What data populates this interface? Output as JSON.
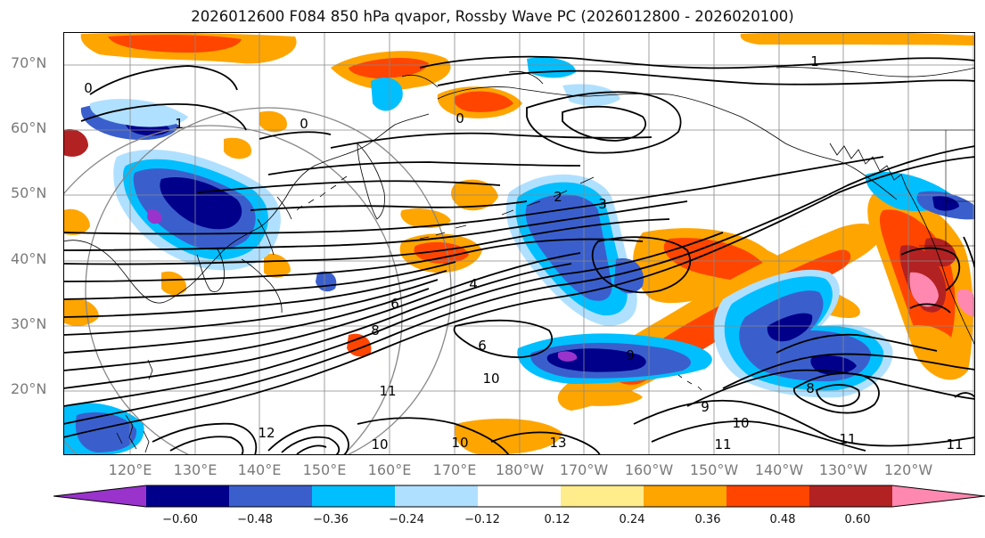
{
  "title": "2026012600 F084 850 hPa qvapor, Rossby Wave PC (2026012800 - 2026020100)",
  "latitude_labels": [
    "70°N",
    "60°N",
    "50°N",
    "40°N",
    "30°N",
    "20°N"
  ],
  "longitude_labels": [
    "120°E",
    "130°E",
    "140°E",
    "150°E",
    "160°E",
    "170°E",
    "180°W",
    "170°W",
    "160°W",
    "150°W",
    "140°W",
    "130°W",
    "120°W"
  ],
  "colorbar": {
    "tick_labels": [
      "−0.60",
      "−0.48",
      "−0.36",
      "−0.24",
      "−0.12",
      "0.12",
      "0.24",
      "0.36",
      "0.48",
      "0.60"
    ],
    "colors": [
      "#9933cc",
      "#00008b",
      "#3a5fcd",
      "#00bfff",
      "#b0e0ff",
      "#ffffff",
      "#ffec8b",
      "#ffa500",
      "#ff4500",
      "#b22222",
      "#ff88b0"
    ]
  },
  "contour_labels": [
    "0",
    "1",
    "0",
    "1",
    "0",
    "2",
    "3",
    "4",
    "6",
    "8",
    "6",
    "9",
    "10",
    "11",
    "11",
    "10",
    "8",
    "9",
    "10",
    "11",
    "12",
    "13",
    "10",
    "11"
  ],
  "colors": {
    "frame": "#000000",
    "grid": "#888888",
    "coast": "#000000",
    "contour": "#000000"
  }
}
